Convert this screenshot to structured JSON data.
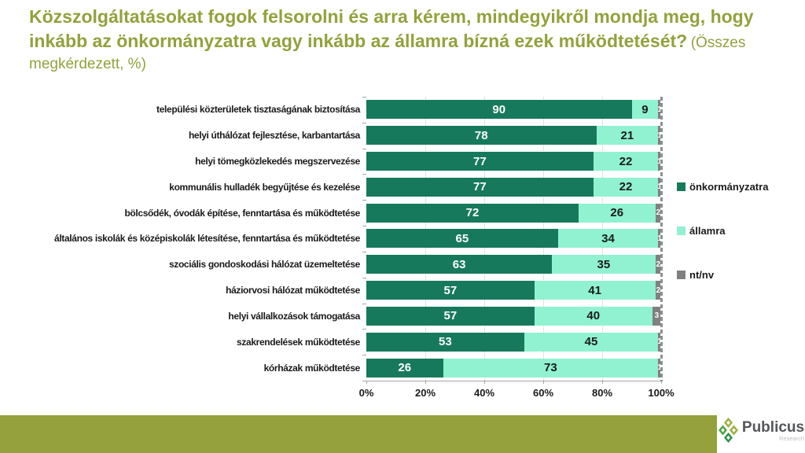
{
  "header": {
    "question": "Közszolgáltatásokat fogok felsorolni és arra kérem, mindegyikről mondja meg, hogy inkább az önkormányzatra vagy inkább az államra bízná ezek működtetését?",
    "subtitle": "(Összes megkérdezett, %)"
  },
  "chart_data": {
    "type": "bar",
    "orientation": "horizontal",
    "stacked": true,
    "title": "Közszolgáltatásokat fogok felsorolni és arra kérem, mindegyikről mondja meg, hogy inkább az önkormányzatra vagy inkább az államra bízná ezek működtetését? (Összes megkérdezett, %)",
    "categories": [
      "települési közterületek tisztaságának biztosítása",
      "helyi úthálózat fejlesztése, karbantartása",
      "helyi tömegközlekedés megszervezése",
      "kommunális hulladék begyűjtése és kezelése",
      "bölcsődék, óvodák építése, fenntartása és működtetése",
      "általános iskolák és középiskolák létesítése, fenntartása és működtetése",
      "szociális gondoskodási hálózat üzemeltetése",
      "háziorvosi hálózat működtetése",
      "helyi vállalkozások támogatása",
      "szakrendelések működtetése",
      "kórházak működtetése"
    ],
    "series": [
      {
        "name": "önkormányzatra",
        "key": "onkormanyzatra",
        "color": "#17795C",
        "values": [
          90,
          78,
          77,
          77,
          72,
          65,
          63,
          57,
          57,
          53,
          26
        ]
      },
      {
        "name": "államra",
        "key": "allamra",
        "color": "#90F2D0",
        "values": [
          9,
          21,
          22,
          22,
          26,
          34,
          35,
          41,
          40,
          45,
          73
        ]
      },
      {
        "name": "nt/nv",
        "key": "ntnv",
        "color": "#808080",
        "values": [
          1,
          1,
          1,
          1,
          2,
          1,
          2,
          2,
          3,
          1,
          1
        ]
      }
    ],
    "x_axis": {
      "min": 0,
      "max": 100,
      "ticks": [
        "0%",
        "20%",
        "40%",
        "60%",
        "80%",
        "100%"
      ]
    },
    "legend_position": "right",
    "grid": "vertical-dotted"
  },
  "colors": {
    "accent_olive": "#94A13C",
    "dark_green": "#17795C",
    "mint_green": "#90F2D0",
    "neutral_gray": "#808080"
  },
  "footer": {
    "brand": "Publicus",
    "brand_sub": "Research"
  }
}
